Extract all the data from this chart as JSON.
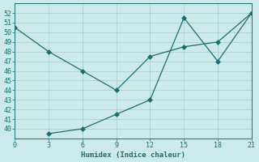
{
  "xlabel": "Humidex (Indice chaleur)",
  "x": [
    0,
    3,
    6,
    9,
    12,
    15,
    18,
    21
  ],
  "line1_y": [
    50.5,
    48.0,
    46.0,
    44.0,
    47.5,
    48.5,
    49.0,
    52.0
  ],
  "line2_y": [
    null,
    39.5,
    40.0,
    41.5,
    43.0,
    51.5,
    47.0,
    52.0
  ],
  "line_color": "#1a7070",
  "bg_color": "#cdeaea",
  "grid_color": "#aecece",
  "ylim": [
    39,
    53
  ],
  "xlim": [
    0,
    21
  ],
  "yticks": [
    40,
    41,
    42,
    43,
    44,
    45,
    46,
    47,
    48,
    49,
    50,
    51,
    52
  ],
  "xticks": [
    0,
    3,
    6,
    9,
    12,
    15,
    18,
    21
  ],
  "markersize": 3
}
